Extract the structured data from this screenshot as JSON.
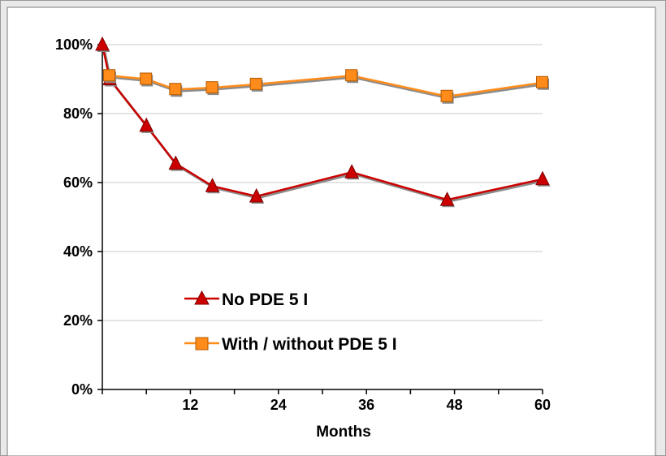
{
  "chart_data": {
    "type": "line",
    "xlabel": "Months",
    "ylabel": "",
    "ylim": [
      0,
      100
    ],
    "xlim": [
      0,
      60
    ],
    "y_ticks": [
      "0%",
      "20%",
      "40%",
      "60%",
      "80%",
      "100%"
    ],
    "x_tick_labels": [
      "12",
      "24",
      "36",
      "48",
      "60"
    ],
    "grid": "horizontal",
    "legend_position": "bottom-center",
    "series": [
      {
        "name": "No PDE 5 I",
        "marker": "triangle",
        "color": "#cc0000",
        "x": [
          0,
          1,
          6,
          10,
          15,
          21,
          34,
          47,
          60
        ],
        "values": [
          100,
          90,
          76.5,
          65.5,
          59,
          56,
          63,
          55,
          61
        ]
      },
      {
        "name": "With / without PDE 5 I",
        "marker": "square",
        "color": "#ff8c1a",
        "x": [
          1,
          6,
          10,
          15,
          21,
          34,
          47,
          60
        ],
        "values": [
          91,
          90,
          87,
          87.5,
          88.5,
          91,
          85,
          89
        ]
      }
    ]
  }
}
